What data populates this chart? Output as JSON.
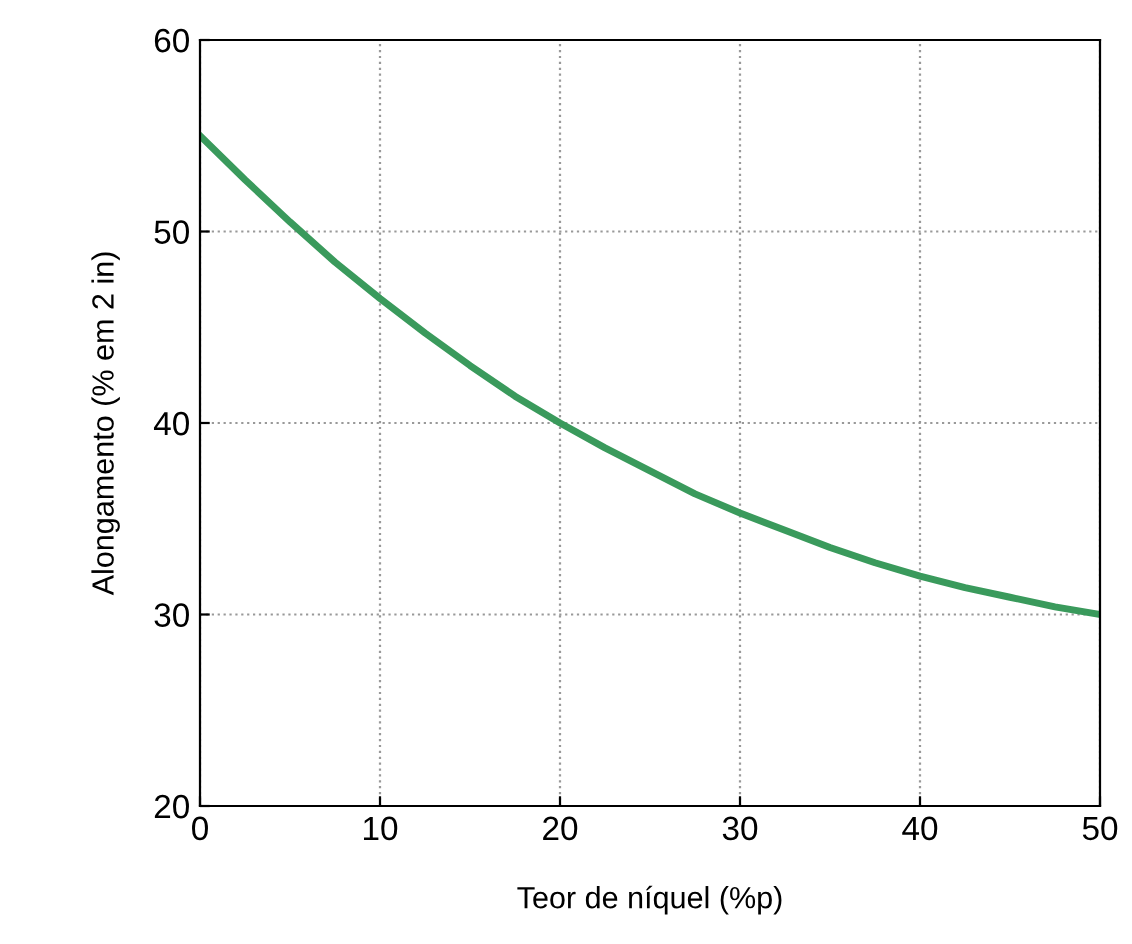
{
  "chart_data": {
    "type": "line",
    "xlabel": "Teor de níquel (%p)",
    "ylabel": "Alongamento (% em 2 in)",
    "x": [
      0,
      2.5,
      5,
      7.5,
      10,
      12.5,
      15,
      17.5,
      20,
      22.5,
      25,
      27.5,
      30,
      32.5,
      35,
      37.5,
      40,
      42.5,
      45,
      47.5,
      50
    ],
    "series": [
      {
        "color": "#3a9a5c",
        "values": [
          55,
          52.7,
          50.5,
          48.4,
          46.5,
          44.7,
          43,
          41.4,
          40,
          38.7,
          37.5,
          36.3,
          35.3,
          34.4,
          33.5,
          32.7,
          32,
          31.4,
          30.9,
          30.4,
          30
        ]
      }
    ],
    "xlim": [
      0,
      50
    ],
    "ylim": [
      20,
      60
    ],
    "xticks": [
      0,
      10,
      20,
      30,
      40,
      50
    ],
    "yticks": [
      20,
      30,
      40,
      50,
      60
    ],
    "grid": true,
    "marker": "none",
    "line_style": "solid"
  }
}
